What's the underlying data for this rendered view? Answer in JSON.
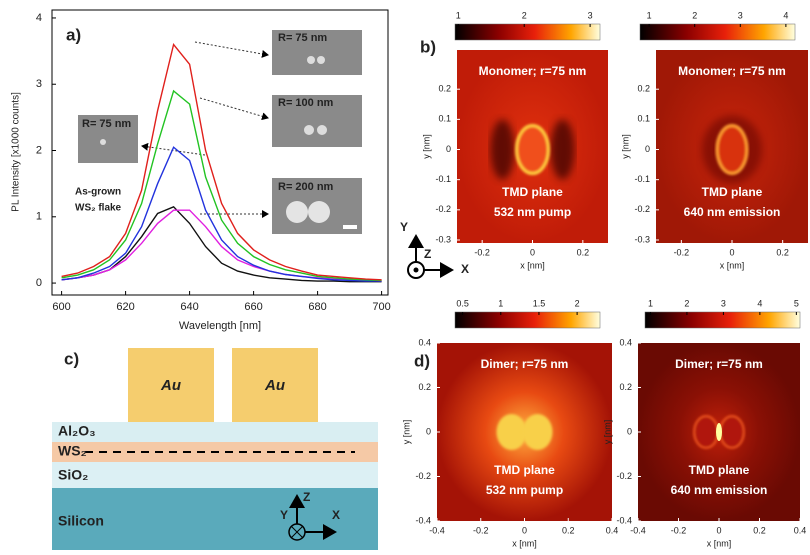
{
  "chart_data": {
    "type": "line",
    "xlabel": "Wavelength [nm]",
    "ylabel": "PL Intensity [x1000 counts]",
    "x": [
      600,
      605,
      610,
      615,
      620,
      625,
      630,
      635,
      640,
      645,
      650,
      655,
      660,
      665,
      670,
      675,
      680,
      685,
      690,
      695,
      700
    ],
    "series": [
      {
        "color": "#e0201c",
        "values": [
          0.1,
          0.15,
          0.25,
          0.4,
          0.75,
          1.4,
          2.6,
          3.6,
          3.3,
          2.0,
          1.2,
          0.75,
          0.5,
          0.35,
          0.25,
          0.18,
          0.12,
          0.1,
          0.08,
          0.06,
          0.05
        ]
      },
      {
        "color": "#22c322",
        "values": [
          0.08,
          0.12,
          0.2,
          0.35,
          0.65,
          1.2,
          2.1,
          2.9,
          2.7,
          1.6,
          0.95,
          0.6,
          0.4,
          0.28,
          0.2,
          0.15,
          0.1,
          0.08,
          0.06,
          0.05,
          0.04
        ]
      },
      {
        "color": "#2233dd",
        "values": [
          0.05,
          0.08,
          0.15,
          0.25,
          0.45,
          0.85,
          1.5,
          2.05,
          1.85,
          1.1,
          0.65,
          0.4,
          0.27,
          0.18,
          0.13,
          0.1,
          0.07,
          0.05,
          0.04,
          0.03,
          0.03
        ]
      },
      {
        "color": "#e020e0",
        "values": [
          0.05,
          0.08,
          0.12,
          0.2,
          0.35,
          0.6,
          0.9,
          1.1,
          1.1,
          0.85,
          0.55,
          0.35,
          0.25,
          0.18,
          0.13,
          0.1,
          0.08,
          0.06,
          0.05,
          0.04,
          0.03
        ]
      },
      {
        "color": "#111111",
        "values": [
          0.05,
          0.08,
          0.12,
          0.2,
          0.4,
          0.7,
          1.05,
          1.15,
          0.9,
          0.55,
          0.3,
          0.18,
          0.12,
          0.08,
          0.06,
          0.04,
          0.03,
          0.03,
          0.02,
          0.02,
          0.02
        ]
      }
    ],
    "xlim": [
      597,
      702
    ],
    "ylim": [
      -0.18,
      4.12
    ],
    "xticks": [
      600,
      620,
      640,
      660,
      680,
      700
    ],
    "yticks": [
      0,
      1,
      2,
      3,
      4
    ],
    "annotations": [
      "R= 75 nm",
      "R= 100 nm",
      "R= 75 nm",
      "R= 200 nm"
    ],
    "flake_label": [
      "As-grown",
      "WS₂ flake"
    ]
  },
  "panel_labels": [
    "a)",
    "b)",
    "c)",
    "d)"
  ],
  "heatmaps": [
    {
      "title": "Monomer; r=75 nm",
      "caption": [
        "TMD plane",
        "532 nm pump"
      ],
      "clim": [
        0.95,
        3.15
      ],
      "cticks": [
        1,
        2,
        3
      ],
      "xlim": [
        -0.3,
        0.3
      ],
      "ylim": [
        -0.31,
        0.33
      ],
      "xticks": [
        -0.2,
        0,
        0.2
      ],
      "yticks": [
        -0.3,
        -0.2,
        -0.1,
        0,
        0.1,
        0.2
      ],
      "xlabel": "x [nm]",
      "ylabel": "y [nm]"
    },
    {
      "title": "Monomer; r=75 nm",
      "caption": [
        "TMD plane",
        "640 nm emission"
      ],
      "clim": [
        0.8,
        4.2
      ],
      "cticks": [
        1,
        2,
        3,
        4
      ],
      "xlim": [
        -0.3,
        0.3
      ],
      "ylim": [
        -0.31,
        0.33
      ],
      "xticks": [
        -0.2,
        0,
        0.2
      ],
      "yticks": [
        -0.3,
        -0.2,
        -0.1,
        0,
        0.1,
        0.2
      ],
      "xlabel": "x [nm]",
      "ylabel": "y [nm]"
    },
    {
      "title": "Dimer; r=75 nm",
      "caption": [
        "TMD plane",
        "532 nm pump"
      ],
      "clim": [
        0.4,
        2.3
      ],
      "cticks": [
        0.5,
        1,
        1.5,
        2
      ],
      "xlim": [
        -0.4,
        0.4
      ],
      "ylim": [
        -0.4,
        0.4
      ],
      "xticks": [
        -0.4,
        -0.2,
        0,
        0.2,
        0.4
      ],
      "yticks": [
        -0.4,
        -0.2,
        0,
        0.2,
        0.4
      ],
      "xlabel": "x [nm]",
      "ylabel": "y [nm]"
    },
    {
      "title": "Dimer; r=75 nm",
      "caption": [
        "TMD plane",
        "640 nm emission"
      ],
      "clim": [
        0.85,
        5.1
      ],
      "cticks": [
        1,
        2,
        3,
        4,
        5
      ],
      "xlim": [
        -0.4,
        0.4
      ],
      "ylim": [
        -0.4,
        0.4
      ],
      "xticks": [
        -0.4,
        -0.2,
        0,
        0.2,
        0.4
      ],
      "yticks": [
        -0.4,
        -0.2,
        0,
        0.2,
        0.4
      ],
      "xlabel": "x [nm]",
      "ylabel": "y [nm]"
    }
  ],
  "axes_indicator": [
    "Y",
    "Z",
    "X"
  ],
  "schematic": {
    "metal": [
      "Au",
      "Au"
    ],
    "layers": [
      "Al₂O₃",
      "WS₂",
      "SiO₂",
      "Silicon"
    ],
    "axes": [
      "Z",
      "Y",
      "X"
    ]
  }
}
